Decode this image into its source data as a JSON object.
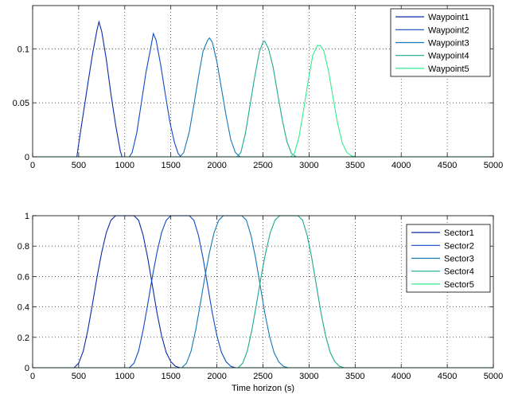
{
  "chart_data": [
    {
      "type": "line",
      "title": "",
      "xlabel": "",
      "ylabel": "",
      "xlim": [
        0,
        5000
      ],
      "ylim": [
        0,
        0.14
      ],
      "xticks": [
        0,
        500,
        1000,
        1500,
        2000,
        2500,
        3000,
        3500,
        4000,
        4500,
        5000
      ],
      "xtick_labels": [
        "0",
        "500",
        "1000",
        "1500",
        "2000",
        "2500",
        "3000",
        "3500",
        "4000",
        "4500",
        "5000"
      ],
      "yticks": [
        0,
        0.05,
        0.1
      ],
      "ytick_labels": [
        "0",
        "0.05",
        "0.1"
      ],
      "grid": true,
      "legend_position": "top-right",
      "series": [
        {
          "name": "Waypoint1",
          "color": "#0a2ba8",
          "x": [
            0,
            480,
            500,
            550,
            600,
            650,
            700,
            720,
            750,
            800,
            850,
            900,
            950,
            970,
            5000
          ],
          "y": [
            0,
            0,
            0.012,
            0.04,
            0.068,
            0.095,
            0.118,
            0.125,
            0.116,
            0.09,
            0.058,
            0.03,
            0.006,
            0,
            0
          ]
        },
        {
          "name": "Waypoint2",
          "color": "#1049c8",
          "x": [
            0,
            1050,
            1080,
            1130,
            1180,
            1230,
            1280,
            1310,
            1340,
            1390,
            1440,
            1490,
            1540,
            1580,
            1610,
            5000
          ],
          "y": [
            0,
            0,
            0.004,
            0.022,
            0.05,
            0.078,
            0.1,
            0.114,
            0.108,
            0.085,
            0.058,
            0.032,
            0.013,
            0.003,
            0,
            0
          ]
        },
        {
          "name": "Waypoint3",
          "color": "#1478b6",
          "x": [
            0,
            1600,
            1640,
            1700,
            1750,
            1800,
            1850,
            1900,
            1920,
            1950,
            2000,
            2050,
            2100,
            2150,
            2200,
            2250,
            5000
          ],
          "y": [
            0,
            0,
            0.004,
            0.023,
            0.048,
            0.074,
            0.098,
            0.108,
            0.11,
            0.106,
            0.088,
            0.063,
            0.038,
            0.016,
            0.004,
            0,
            0
          ]
        },
        {
          "name": "Waypoint4",
          "color": "#1aa98f",
          "x": [
            0,
            2220,
            2260,
            2310,
            2360,
            2410,
            2460,
            2500,
            2520,
            2560,
            2610,
            2660,
            2710,
            2760,
            2810,
            2860,
            5000
          ],
          "y": [
            0,
            0,
            0.004,
            0.022,
            0.048,
            0.074,
            0.097,
            0.106,
            0.107,
            0.1,
            0.083,
            0.058,
            0.034,
            0.014,
            0.003,
            0,
            0
          ]
        },
        {
          "name": "Waypoint5",
          "color": "#33ec8e",
          "x": [
            0,
            2800,
            2840,
            2890,
            2940,
            2990,
            3040,
            3090,
            3120,
            3160,
            3210,
            3260,
            3310,
            3360,
            3410,
            3460,
            3500,
            5000
          ],
          "y": [
            0,
            0,
            0.003,
            0.018,
            0.043,
            0.07,
            0.094,
            0.103,
            0.103,
            0.098,
            0.08,
            0.055,
            0.031,
            0.013,
            0.004,
            0.001,
            0,
            0
          ]
        }
      ]
    },
    {
      "type": "line",
      "title": "",
      "xlabel": "Time horizon (s)",
      "ylabel": "",
      "xlim": [
        0,
        5000
      ],
      "ylim": [
        0,
        1
      ],
      "xticks": [
        0,
        500,
        1000,
        1500,
        2000,
        2500,
        3000,
        3500,
        4000,
        4500,
        5000
      ],
      "xtick_labels": [
        "0",
        "500",
        "1000",
        "1500",
        "2000",
        "2500",
        "3000",
        "3500",
        "4000",
        "4500",
        "5000"
      ],
      "yticks": [
        0,
        0.2,
        0.4,
        0.6,
        0.8,
        1
      ],
      "ytick_labels": [
        "0",
        "0.2",
        "0.4",
        "0.6",
        "0.8",
        "1"
      ],
      "grid": true,
      "legend_position": "top-right",
      "series": [
        {
          "name": "Sector1",
          "color": "#0a2ba8",
          "x": [
            0,
            450,
            500,
            550,
            600,
            650,
            700,
            750,
            800,
            850,
            900,
            950,
            1000,
            1050,
            1100,
            1150,
            1200,
            1250,
            1300,
            1350,
            1400,
            1450,
            1500,
            1550,
            1600,
            5000
          ],
          "y": [
            0,
            0,
            0.03,
            0.11,
            0.25,
            0.42,
            0.6,
            0.76,
            0.89,
            0.97,
            1.0,
            1.0,
            1.0,
            1.0,
            1.0,
            0.97,
            0.87,
            0.72,
            0.54,
            0.36,
            0.21,
            0.1,
            0.04,
            0.01,
            0,
            0
          ]
        },
        {
          "name": "Sector2",
          "color": "#1049c8",
          "x": [
            0,
            1050,
            1100,
            1150,
            1200,
            1250,
            1300,
            1350,
            1400,
            1450,
            1500,
            1550,
            1600,
            1650,
            1700,
            1750,
            1800,
            1850,
            1900,
            1950,
            2000,
            2050,
            2100,
            2150,
            2200,
            5000
          ],
          "y": [
            0,
            0,
            0.03,
            0.11,
            0.25,
            0.42,
            0.6,
            0.76,
            0.89,
            0.97,
            1.0,
            1.0,
            1.0,
            1.0,
            1.0,
            0.97,
            0.87,
            0.72,
            0.54,
            0.36,
            0.21,
            0.1,
            0.04,
            0.01,
            0,
            0
          ]
        },
        {
          "name": "Sector3",
          "color": "#1478b6",
          "x": [
            0,
            1620,
            1670,
            1720,
            1770,
            1820,
            1870,
            1920,
            1970,
            2020,
            2070,
            2120,
            2170,
            2220,
            2270,
            2320,
            2370,
            2420,
            2470,
            2520,
            2570,
            2620,
            2670,
            2720,
            2770,
            5000
          ],
          "y": [
            0,
            0,
            0.03,
            0.11,
            0.25,
            0.42,
            0.6,
            0.76,
            0.89,
            0.97,
            1.0,
            1.0,
            1.0,
            1.0,
            1.0,
            0.97,
            0.87,
            0.72,
            0.54,
            0.36,
            0.21,
            0.1,
            0.04,
            0.01,
            0,
            0
          ]
        },
        {
          "name": "Sector4",
          "color": "#1aa98f",
          "x": [
            0,
            2230,
            2280,
            2330,
            2380,
            2430,
            2480,
            2530,
            2580,
            2630,
            2680,
            2730,
            2780,
            2830,
            2880,
            2930,
            2980,
            3030,
            3080,
            3130,
            3180,
            3230,
            3280,
            3330,
            3380,
            5000
          ],
          "y": [
            0,
            0,
            0.03,
            0.11,
            0.25,
            0.42,
            0.6,
            0.76,
            0.89,
            0.97,
            1.0,
            1.0,
            1.0,
            1.0,
            1.0,
            0.97,
            0.87,
            0.72,
            0.54,
            0.36,
            0.21,
            0.1,
            0.04,
            0.01,
            0,
            0
          ]
        },
        {
          "name": "Sector5",
          "color": "#33ec8e",
          "x": [
            0,
            5000
          ],
          "y": [
            0,
            0
          ]
        }
      ]
    }
  ]
}
